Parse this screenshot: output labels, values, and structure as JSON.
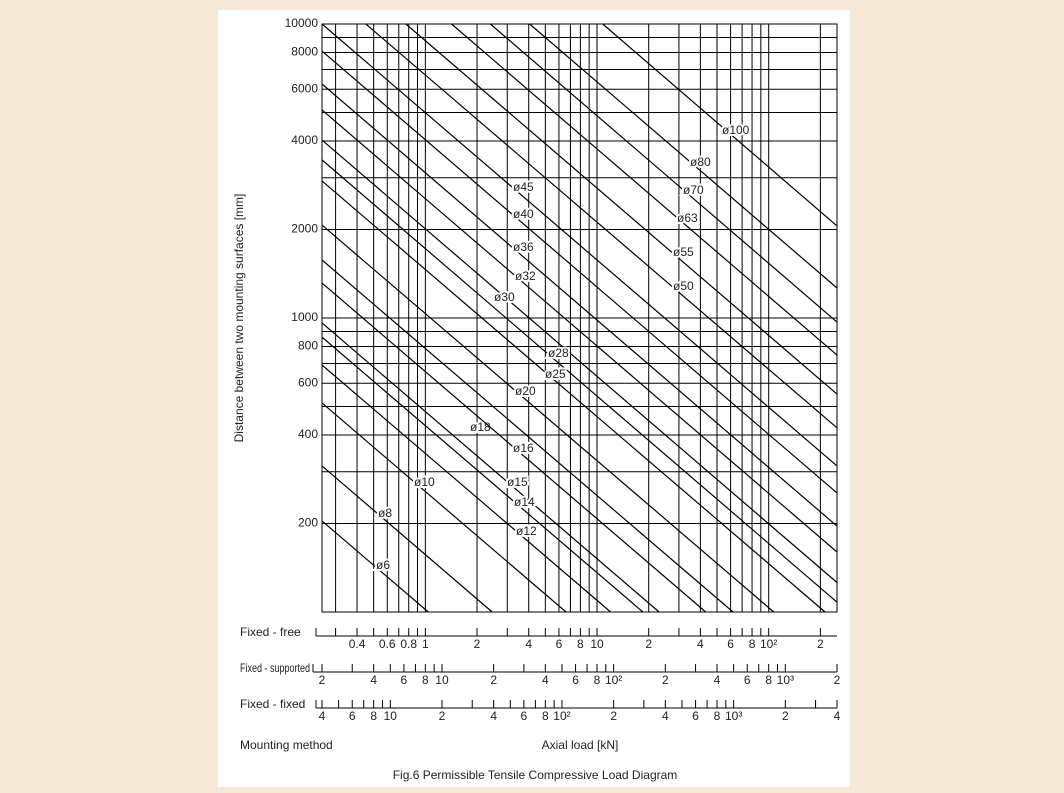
{
  "chart_data": {
    "type": "line",
    "log_x": true,
    "log_y": true,
    "grid": true,
    "color": "#000000",
    "ylabel": "Distance between two mounting surfaces [mm]",
    "xlabel": "Axial load [kN]",
    "mounting_label": "Mounting method",
    "caption": "Fig.6 Permissible Tensile Compressive Load Diagram",
    "xlim": [
      0.25,
      250
    ],
    "ylim": [
      100,
      10000
    ],
    "yticks": [
      200,
      400,
      600,
      800,
      1000,
      2000,
      4000,
      6000,
      8000,
      10000
    ],
    "yminor": [
      300,
      500,
      700,
      900,
      3000,
      5000,
      7000,
      9000
    ],
    "series": [
      {
        "name": "ø100",
        "x": [
          10.8,
          250
        ],
        "values": [
          10000,
          2056
        ]
      },
      {
        "name": "ø80",
        "x": [
          4.05,
          250
        ],
        "values": [
          10000,
          1265
        ]
      },
      {
        "name": "ø70",
        "x": [
          2.39,
          250
        ],
        "values": [
          10000,
          969
        ]
      },
      {
        "name": "ø63",
        "x": [
          1.42,
          250
        ],
        "values": [
          10000,
          748
        ]
      },
      {
        "name": "ø55",
        "x": [
          0.77,
          250
        ],
        "values": [
          10000,
          551
        ]
      },
      {
        "name": "ø50",
        "x": [
          0.45,
          250
        ],
        "values": [
          10000,
          423
        ]
      },
      {
        "name": "ø45",
        "x": [
          0.25,
          250
        ],
        "values": [
          10000,
          314
        ]
      },
      {
        "name": "ø40",
        "x": [
          0.25,
          250
        ],
        "values": [
          8090,
          254
        ]
      },
      {
        "name": "ø36",
        "x": [
          0.25,
          250
        ],
        "values": [
          6250,
          196
        ]
      },
      {
        "name": "ø32",
        "x": [
          0.25,
          250
        ],
        "values": [
          5100,
          160
        ]
      },
      {
        "name": "ø30",
        "x": [
          0.25,
          250
        ],
        "values": [
          4030,
          126
        ]
      },
      {
        "name": "ø28",
        "x": [
          0.25,
          250
        ],
        "values": [
          3450,
          108
        ]
      },
      {
        "name": "ø25",
        "x": [
          0.25,
          213
        ],
        "values": [
          2925,
          100
        ]
      },
      {
        "name": "ø20",
        "x": [
          0.25,
          107
        ],
        "values": [
          2070,
          100
        ]
      },
      {
        "name": "ø18",
        "x": [
          0.25,
          62
        ],
        "values": [
          1575,
          100
        ]
      },
      {
        "name": "ø16",
        "x": [
          0.25,
          43
        ],
        "values": [
          1315,
          100
        ]
      },
      {
        "name": "ø15",
        "x": [
          0.25,
          23
        ],
        "values": [
          962,
          100
        ]
      },
      {
        "name": "ø14",
        "x": [
          0.25,
          18.5
        ],
        "values": [
          861,
          100
        ]
      },
      {
        "name": "ø12",
        "x": [
          0.25,
          12
        ],
        "values": [
          692,
          100
        ]
      },
      {
        "name": "ø10",
        "x": [
          0.25,
          6.6
        ],
        "values": [
          514,
          100
        ]
      },
      {
        "name": "ø8",
        "x": [
          0.25,
          2.45
        ],
        "values": [
          314,
          100
        ]
      },
      {
        "name": "ø6",
        "x": [
          0.25,
          1.04
        ],
        "values": [
          204,
          100
        ]
      }
    ],
    "x_scales": [
      {
        "name": "Fixed - free",
        "xlim": [
          0.25,
          250
        ],
        "xticks": [
          0.4,
          0.6,
          0.8,
          1,
          2,
          4,
          6,
          8,
          10,
          {
            "value": 20,
            "label": "2"
          },
          {
            "value": 40,
            "label": "4"
          },
          {
            "value": 60,
            "label": "6"
          },
          {
            "value": 80,
            "label": "8"
          },
          {
            "value": 100,
            "label": "10²"
          },
          {
            "value": 200,
            "label": "2"
          }
        ],
        "xminor": [
          0.3,
          0.5,
          0.7,
          0.9,
          3,
          5,
          7,
          9,
          30,
          50,
          70,
          90
        ]
      },
      {
        "name": "Fixed - supported",
        "xlim": [
          2,
          2000
        ],
        "xticks": [
          2,
          4,
          6,
          8,
          10,
          {
            "value": 20,
            "label": "2"
          },
          {
            "value": 40,
            "label": "4"
          },
          {
            "value": 60,
            "label": "6"
          },
          {
            "value": 80,
            "label": "8"
          },
          {
            "value": 100,
            "label": "10²"
          },
          {
            "value": 200,
            "label": "2"
          },
          {
            "value": 400,
            "label": "4"
          },
          {
            "value": 600,
            "label": "6"
          },
          {
            "value": 800,
            "label": "8"
          },
          {
            "value": 1000,
            "label": "10³"
          },
          {
            "value": 2000,
            "label": "2"
          }
        ],
        "xminor": [
          3,
          5,
          7,
          9,
          30,
          50,
          70,
          90,
          300,
          500,
          700,
          900
        ]
      },
      {
        "name": "Fixed - fixed",
        "xlim": [
          4,
          4000
        ],
        "xticks": [
          4,
          6,
          8,
          10,
          {
            "value": 20,
            "label": "2"
          },
          {
            "value": 40,
            "label": "4"
          },
          {
            "value": 60,
            "label": "6"
          },
          {
            "value": 80,
            "label": "8"
          },
          {
            "value": 100,
            "label": "10²"
          },
          {
            "value": 200,
            "label": "2"
          },
          {
            "value": 400,
            "label": "4"
          },
          {
            "value": 600,
            "label": "6"
          },
          {
            "value": 800,
            "label": "8"
          },
          {
            "value": 1000,
            "label": "10³"
          },
          {
            "value": 2000,
            "label": "2"
          },
          {
            "value": 4000,
            "label": "4"
          }
        ],
        "xminor": [
          5,
          7,
          9,
          30,
          50,
          70,
          90,
          300,
          500,
          700,
          900,
          3000
        ]
      }
    ]
  }
}
